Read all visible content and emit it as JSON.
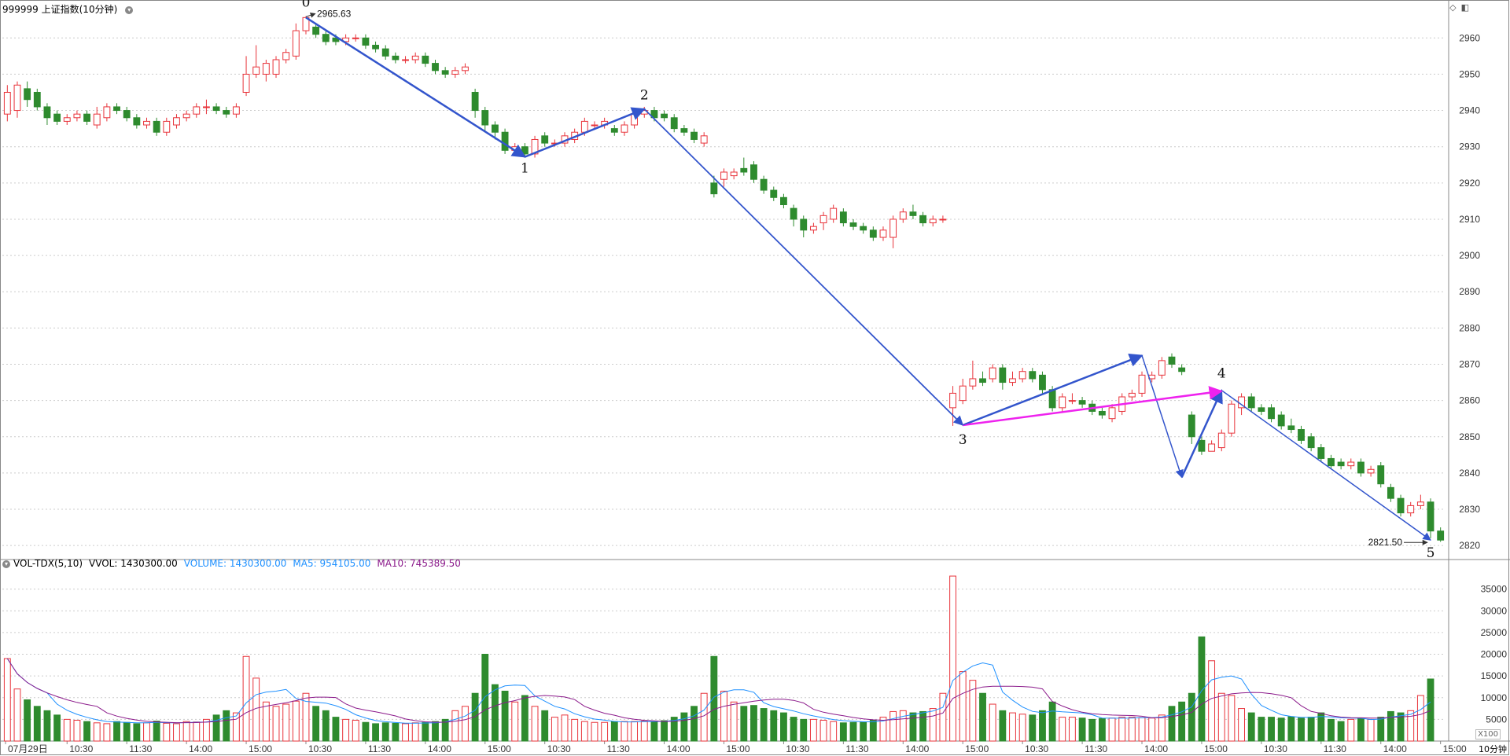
{
  "panel_title": "999999 上证指数(10分钟)",
  "vol_header": {
    "name": "VOL-TDX(5,10)",
    "vvol": "VVOL: 1430300.00",
    "volume": "VOLUME: 1430300.00",
    "ma5": "MA5: 954105.00",
    "ma10": "MA10: 745389.50"
  },
  "period_label": "10分钟",
  "unit_label": "X100",
  "colors": {
    "up": "#e8333a",
    "down": "#2e8b2e",
    "wave": "#3355cc",
    "pink": "#ee22ee",
    "ma5": "#1e90ff",
    "ma10": "#8b1a8b"
  },
  "chart_data": [
    {
      "type": "candlestick",
      "ylim": [
        2817,
        2967
      ],
      "y_ticks": [
        2820,
        2830,
        2840,
        2850,
        2860,
        2870,
        2880,
        2890,
        2900,
        2910,
        2920,
        2930,
        2940,
        2950,
        2960
      ],
      "x_labels": [
        "07月29日",
        "10:30",
        "11:30",
        "14:00",
        "15:00",
        "10:30",
        "11:30",
        "14:00",
        "15:00",
        "10:30",
        "11:30",
        "14:00",
        "15:00",
        "10:30",
        "11:30",
        "14:00",
        "15:00",
        "10:30",
        "11:30",
        "14:00",
        "15:00",
        "10:30",
        "11:30",
        "14:00",
        "15:00"
      ],
      "annotations": {
        "high": "2965.63",
        "low": "2821.50"
      },
      "wave_labels": [
        "0",
        "1",
        "2",
        "3",
        "4",
        "5"
      ],
      "candles": [
        [
          2939,
          2945,
          2947,
          2937
        ],
        [
          2940,
          2947,
          2948,
          2938
        ],
        [
          2946,
          2943,
          2948,
          2941
        ],
        [
          2945,
          2941,
          2946,
          2940
        ],
        [
          2941,
          2938,
          2942,
          2936
        ],
        [
          2939,
          2937,
          2940,
          2936
        ],
        [
          2937,
          2938,
          2939,
          2936
        ],
        [
          2938,
          2939,
          2940,
          2937
        ],
        [
          2939,
          2937,
          2940,
          2936
        ],
        [
          2936,
          2939,
          2941,
          2935
        ],
        [
          2938,
          2941,
          2942,
          2937
        ],
        [
          2941,
          2940,
          2942,
          2939
        ],
        [
          2940,
          2938,
          2941,
          2937
        ],
        [
          2938,
          2936,
          2939,
          2935
        ],
        [
          2936,
          2937,
          2938,
          2935
        ],
        [
          2937,
          2934,
          2938,
          2933
        ],
        [
          2934,
          2937,
          2938,
          2933
        ],
        [
          2936,
          2938,
          2939,
          2935
        ],
        [
          2938,
          2939,
          2940,
          2937
        ],
        [
          2939,
          2941,
          2942,
          2938
        ],
        [
          2941,
          2941,
          2943,
          2939
        ],
        [
          2941,
          2940,
          2942,
          2939
        ],
        [
          2940,
          2939,
          2941,
          2938
        ],
        [
          2939,
          2941,
          2942,
          2938
        ],
        [
          2945,
          2950,
          2955,
          2944
        ],
        [
          2950,
          2952,
          2958,
          2949
        ],
        [
          2950,
          2953,
          2954,
          2948
        ],
        [
          2950,
          2954,
          2955,
          2949
        ],
        [
          2954,
          2956,
          2957,
          2953
        ],
        [
          2955,
          2962,
          2964,
          2954
        ],
        [
          2962,
          2965.63,
          2966,
          2961
        ],
        [
          2963,
          2961,
          2964,
          2960
        ],
        [
          2961,
          2959,
          2962,
          2958
        ],
        [
          2960,
          2959,
          2961,
          2958
        ],
        [
          2959,
          2960,
          2961,
          2958
        ],
        [
          2960,
          2960,
          2961,
          2959
        ],
        [
          2960,
          2958,
          2961,
          2957
        ],
        [
          2958,
          2957,
          2959,
          2956
        ],
        [
          2957,
          2955,
          2958,
          2954
        ],
        [
          2955,
          2954,
          2956,
          2953
        ],
        [
          2954,
          2954,
          2955,
          2953
        ],
        [
          2954,
          2955,
          2956,
          2953
        ],
        [
          2955,
          2953,
          2956,
          2952
        ],
        [
          2953,
          2951,
          2954,
          2950
        ],
        [
          2951,
          2950,
          2952,
          2949
        ],
        [
          2950,
          2951,
          2952,
          2949
        ],
        [
          2951,
          2952,
          2953,
          2950
        ],
        [
          2945,
          2940,
          2946,
          2938
        ],
        [
          2940,
          2936,
          2941,
          2934
        ],
        [
          2936,
          2934,
          2937,
          2932
        ],
        [
          2934,
          2929,
          2935,
          2928
        ],
        [
          2929,
          2930,
          2931,
          2928
        ],
        [
          2930,
          2928,
          2931,
          2927
        ],
        [
          2928,
          2932,
          2933,
          2927
        ],
        [
          2933,
          2931,
          2934,
          2930
        ],
        [
          2931,
          2931,
          2932,
          2930
        ],
        [
          2931,
          2933,
          2934,
          2930
        ],
        [
          2932,
          2934,
          2935,
          2931
        ],
        [
          2934,
          2937,
          2938,
          2933
        ],
        [
          2936,
          2936,
          2937,
          2935
        ],
        [
          2936,
          2937,
          2938,
          2935
        ],
        [
          2935,
          2934,
          2936,
          2933
        ],
        [
          2934,
          2936,
          2937,
          2933
        ],
        [
          2936,
          2939,
          2940,
          2935
        ],
        [
          2939,
          2940,
          2941,
          2938
        ],
        [
          2940,
          2938,
          2941,
          2937
        ],
        [
          2939,
          2938,
          2940,
          2937
        ],
        [
          2938,
          2935,
          2939,
          2934
        ],
        [
          2935,
          2934,
          2936,
          2933
        ],
        [
          2934,
          2932,
          2935,
          2931
        ],
        [
          2931,
          2933,
          2934,
          2930
        ],
        [
          2920,
          2917,
          2922,
          2916
        ],
        [
          2921,
          2923,
          2924,
          2919
        ],
        [
          2922,
          2923,
          2924,
          2921
        ],
        [
          2924,
          2923,
          2927,
          2922
        ],
        [
          2925,
          2921,
          2926,
          2920
        ],
        [
          2921,
          2918,
          2922,
          2917
        ],
        [
          2918,
          2916,
          2919,
          2915
        ],
        [
          2916,
          2914,
          2917,
          2913
        ],
        [
          2913,
          2910,
          2914,
          2908
        ],
        [
          2910,
          2907,
          2911,
          2905
        ],
        [
          2907,
          2908,
          2909,
          2906
        ],
        [
          2909,
          2911,
          2912,
          2907
        ],
        [
          2910,
          2913,
          2914,
          2909
        ],
        [
          2912,
          2909,
          2913,
          2908
        ],
        [
          2909,
          2908,
          2910,
          2907
        ],
        [
          2908,
          2907,
          2909,
          2906
        ],
        [
          2907,
          2905,
          2908,
          2904
        ],
        [
          2905,
          2907,
          2908,
          2904
        ],
        [
          2905,
          2910,
          2911,
          2902
        ],
        [
          2910,
          2912,
          2913,
          2909
        ],
        [
          2912,
          2911,
          2914,
          2910
        ],
        [
          2911,
          2909,
          2912,
          2908
        ],
        [
          2909,
          2910,
          2911,
          2908
        ],
        [
          2910,
          2910,
          2911,
          2909
        ],
        [
          2858,
          2862,
          2864,
          2853
        ],
        [
          2860,
          2864,
          2866,
          2859
        ],
        [
          2864,
          2866,
          2871,
          2863
        ],
        [
          2866,
          2865,
          2868,
          2864
        ],
        [
          2866,
          2869,
          2870,
          2865
        ],
        [
          2869,
          2865,
          2870,
          2863
        ],
        [
          2865,
          2866,
          2868,
          2864
        ],
        [
          2866,
          2868,
          2869,
          2865
        ],
        [
          2868,
          2866,
          2869,
          2865
        ],
        [
          2867,
          2863,
          2868,
          2862
        ],
        [
          2863,
          2858,
          2864,
          2857
        ],
        [
          2858,
          2861,
          2862,
          2857
        ],
        [
          2860,
          2860,
          2862,
          2859
        ],
        [
          2860,
          2859,
          2861,
          2858
        ],
        [
          2859,
          2857,
          2860,
          2856
        ],
        [
          2857,
          2856,
          2858,
          2855
        ],
        [
          2855,
          2858,
          2859,
          2854
        ],
        [
          2857,
          2861,
          2862,
          2856
        ],
        [
          2861,
          2862,
          2863,
          2860
        ],
        [
          2862,
          2867,
          2868,
          2861
        ],
        [
          2866,
          2867,
          2868,
          2865
        ],
        [
          2867,
          2871,
          2872,
          2866
        ],
        [
          2872,
          2870,
          2873,
          2869
        ],
        [
          2869,
          2868,
          2870,
          2867
        ],
        [
          2856,
          2850,
          2857,
          2848
        ],
        [
          2849,
          2846,
          2850,
          2845
        ],
        [
          2846,
          2848,
          2849,
          2846
        ],
        [
          2847,
          2851,
          2852,
          2846
        ],
        [
          2851,
          2859,
          2860,
          2850
        ],
        [
          2858,
          2861,
          2862,
          2856
        ],
        [
          2861,
          2858,
          2862,
          2857
        ],
        [
          2858,
          2857,
          2859,
          2856
        ],
        [
          2858,
          2855,
          2859,
          2854
        ],
        [
          2856,
          2853,
          2857,
          2852
        ],
        [
          2853,
          2852,
          2855,
          2851
        ],
        [
          2852,
          2849,
          2853,
          2848
        ],
        [
          2850,
          2847,
          2851,
          2846
        ],
        [
          2847,
          2844,
          2848,
          2843
        ],
        [
          2844,
          2842,
          2845,
          2841
        ],
        [
          2843,
          2842,
          2844,
          2841
        ],
        [
          2842,
          2843,
          2844,
          2841
        ],
        [
          2843,
          2840,
          2844,
          2839
        ],
        [
          2840,
          2841,
          2842,
          2839
        ],
        [
          2842,
          2837,
          2843,
          2836
        ],
        [
          2836,
          2833,
          2837,
          2832
        ],
        [
          2833,
          2829,
          2834,
          2828
        ],
        [
          2829,
          2831,
          2832,
          2828
        ],
        [
          2831,
          2832,
          2834,
          2830
        ],
        [
          2832,
          2824,
          2833,
          2822
        ],
        [
          2824,
          2821.5,
          2825,
          2821
        ]
      ],
      "waves": [
        [
          30,
          2965.63
        ],
        [
          52,
          2927.2
        ],
        [
          64,
          2940.4
        ],
        [
          96,
          2853.2
        ],
        [
          114,
          2872.4
        ],
        [
          118,
          2838.8
        ],
        [
          122,
          2862.8
        ],
        [
          143,
          2821.5
        ]
      ]
    },
    {
      "type": "bar",
      "ylim": [
        0,
        40000
      ],
      "y_ticks": [
        5000,
        10000,
        15000,
        20000,
        25000,
        30000,
        35000
      ],
      "series": [
        {
          "name": "VOLUME",
          "values": [
            19000,
            12000,
            9500,
            8000,
            7000,
            6000,
            5000,
            4800,
            4500,
            4200,
            4000,
            4500,
            4300,
            4000,
            4200,
            4600,
            4100,
            4000,
            4500,
            4400,
            5000,
            6000,
            7000,
            6500,
            19500,
            14500,
            9000,
            8000,
            8500,
            9200,
            11000,
            8000,
            7000,
            5500,
            5000,
            4800,
            4300,
            4000,
            4200,
            4100,
            4000,
            4200,
            4300,
            4500,
            5000,
            7000,
            8000,
            11000,
            20000,
            13000,
            11500,
            9000,
            10500,
            8000,
            7000,
            5500,
            6000,
            5000,
            4500,
            4300,
            4300,
            4500,
            4500,
            4500,
            4600,
            4400,
            4700,
            5500,
            6500,
            8000,
            11000,
            19500,
            11500,
            9000,
            8000,
            8200,
            7500,
            7000,
            6500,
            5500,
            5000,
            5000,
            4800,
            4500,
            4200,
            4300,
            4400,
            4800,
            5500,
            6800,
            7000,
            6500,
            6800,
            7500,
            11000,
            38000,
            16000,
            14000,
            11000,
            8500,
            7000,
            6500,
            6200,
            6000,
            7000,
            9000,
            5500,
            5500,
            5300,
            5000,
            5200,
            5300,
            5500,
            5500,
            5400,
            5300,
            6000,
            8000,
            9000,
            11000,
            24000,
            18500,
            11000,
            10500,
            7500,
            6500,
            5500,
            5500,
            5300,
            5600,
            5300,
            5500,
            6500,
            5000,
            4500,
            5000,
            5300,
            5000,
            5500,
            6800,
            6500,
            7000,
            10500,
            14300
          ]
        },
        {
          "name": "MA5",
          "values": []
        },
        {
          "name": "MA10",
          "values": []
        }
      ]
    }
  ]
}
